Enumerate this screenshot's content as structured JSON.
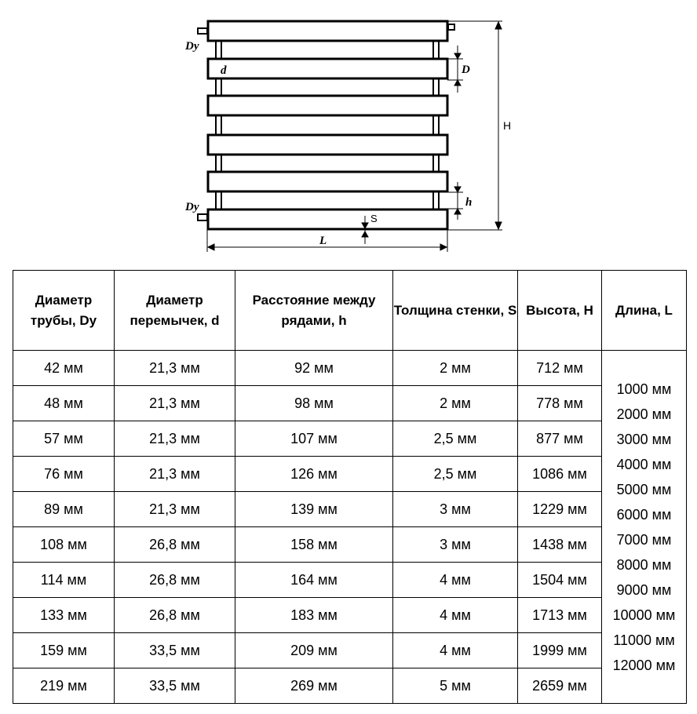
{
  "diagram": {
    "labels": {
      "dy_top": "Dy",
      "dy_bottom": "Dy",
      "d": "d",
      "D": "D",
      "H": "H",
      "h": "h",
      "S": "S",
      "L": "L"
    }
  },
  "table": {
    "headers": [
      "Диаметр трубы, Dy",
      "Диаметр перемычек, d",
      "Расстояние между рядами, h",
      "Толщина стенки, S",
      "Высота, H",
      "Длина, L"
    ],
    "rows": [
      [
        "42 мм",
        "21,3 мм",
        "92 мм",
        "2 мм",
        "712 мм"
      ],
      [
        "48 мм",
        "21,3 мм",
        "98 мм",
        "2 мм",
        "778 мм"
      ],
      [
        "57 мм",
        "21,3 мм",
        "107 мм",
        "2,5 мм",
        "877 мм"
      ],
      [
        "76 мм",
        "21,3 мм",
        "126 мм",
        "2,5 мм",
        "1086 мм"
      ],
      [
        "89 мм",
        "21,3 мм",
        "139 мм",
        "3 мм",
        "1229 мм"
      ],
      [
        "108 мм",
        "26,8 мм",
        "158 мм",
        "3 мм",
        "1438 мм"
      ],
      [
        "114 мм",
        "26,8 мм",
        "164 мм",
        "4 мм",
        "1504 мм"
      ],
      [
        "133 мм",
        "26,8 мм",
        "183 мм",
        "4 мм",
        "1713 мм"
      ],
      [
        "159 мм",
        "33,5 мм",
        "209 мм",
        "4 мм",
        "1999 мм"
      ],
      [
        "219 мм",
        "33,5 мм",
        "269 мм",
        "5 мм",
        "2659 мм"
      ]
    ],
    "lengths": [
      "1000 мм",
      "2000 мм",
      "3000 мм",
      "4000 мм",
      "5000 мм",
      "6000 мм",
      "7000 мм",
      "8000 мм",
      "9000 мм",
      "10000 мм",
      "11000 мм",
      "12000 мм"
    ]
  }
}
